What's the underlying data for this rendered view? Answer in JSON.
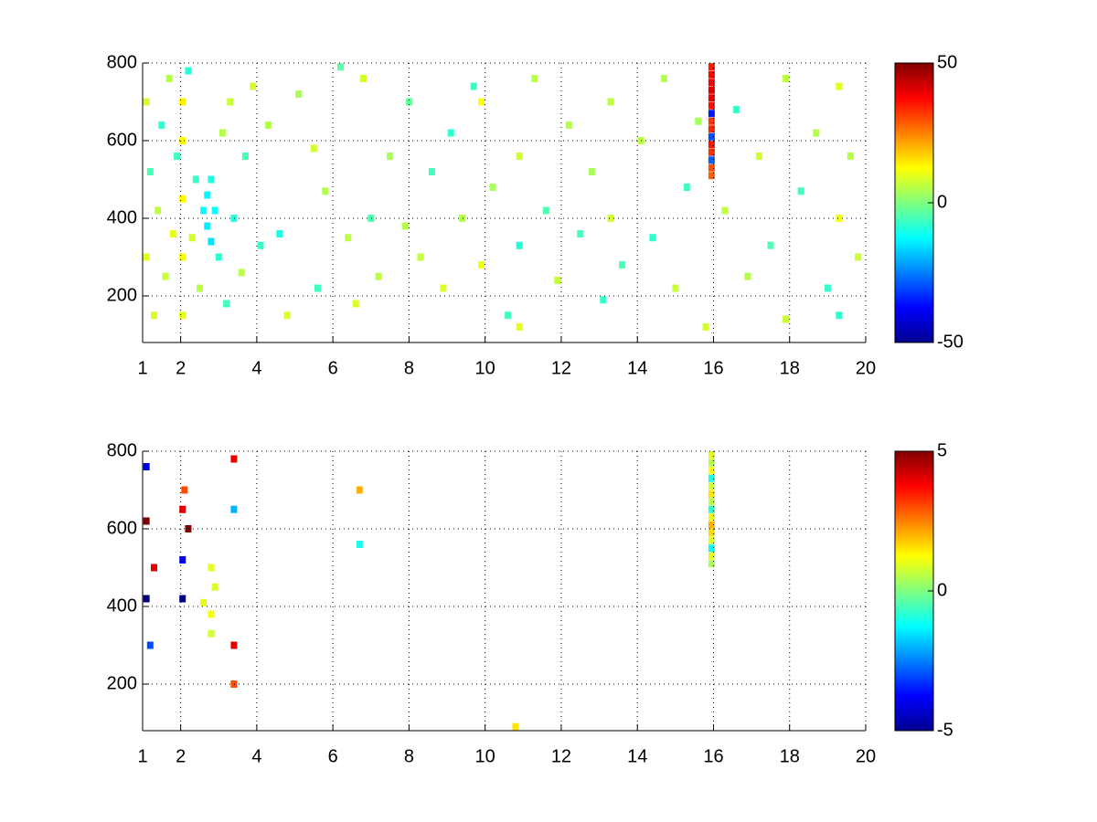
{
  "chart_data": [
    {
      "type": "heatmap",
      "xlim": [
        1,
        20
      ],
      "ylim": [
        80,
        800
      ],
      "xticks": [
        1,
        2,
        4,
        6,
        8,
        10,
        12,
        14,
        16,
        18,
        20
      ],
      "yticks": [
        200,
        400,
        600,
        800
      ],
      "clim": [
        -50,
        50
      ],
      "cticks": [
        -50,
        0,
        50
      ],
      "grid": true,
      "colormap": "jet",
      "cells": [
        [
          1.1,
          700,
          8
        ],
        [
          1.1,
          300,
          10
        ],
        [
          1.2,
          520,
          -5
        ],
        [
          1.3,
          150,
          9
        ],
        [
          1.4,
          420,
          6
        ],
        [
          1.5,
          640,
          -8
        ],
        [
          1.6,
          250,
          7
        ],
        [
          1.7,
          760,
          5
        ],
        [
          1.8,
          360,
          10
        ],
        [
          1.9,
          560,
          -6
        ],
        [
          2.05,
          700,
          14
        ],
        [
          2.05,
          600,
          12
        ],
        [
          2.05,
          450,
          13
        ],
        [
          2.05,
          300,
          11
        ],
        [
          2.05,
          150,
          10
        ],
        [
          2.2,
          780,
          -9
        ],
        [
          2.3,
          350,
          8
        ],
        [
          2.4,
          500,
          -7
        ],
        [
          2.5,
          220,
          6
        ],
        [
          2.6,
          420,
          -12
        ],
        [
          2.7,
          380,
          -14
        ],
        [
          2.7,
          460,
          -13
        ],
        [
          2.8,
          340,
          -15
        ],
        [
          2.8,
          500,
          -10
        ],
        [
          2.9,
          420,
          -12
        ],
        [
          3.0,
          300,
          -8
        ],
        [
          3.1,
          620,
          5
        ],
        [
          3.2,
          180,
          -6
        ],
        [
          3.3,
          700,
          7
        ],
        [
          3.4,
          400,
          -9
        ],
        [
          3.6,
          260,
          6
        ],
        [
          3.7,
          560,
          -5
        ],
        [
          3.9,
          740,
          8
        ],
        [
          4.1,
          330,
          -7
        ],
        [
          4.3,
          640,
          5
        ],
        [
          4.6,
          360,
          -10
        ],
        [
          4.8,
          150,
          9
        ],
        [
          5.1,
          720,
          4
        ],
        [
          5.5,
          580,
          8
        ],
        [
          5.6,
          220,
          -6
        ],
        [
          5.8,
          470,
          5
        ],
        [
          6.2,
          790,
          -4
        ],
        [
          6.4,
          350,
          6
        ],
        [
          6.6,
          180,
          9
        ],
        [
          6.8,
          760,
          8
        ],
        [
          7.0,
          400,
          -5
        ],
        [
          7.2,
          250,
          6
        ],
        [
          7.5,
          560,
          4
        ],
        [
          7.9,
          380,
          5
        ],
        [
          8.0,
          700,
          -3
        ],
        [
          8.3,
          300,
          7
        ],
        [
          8.6,
          520,
          -6
        ],
        [
          8.9,
          220,
          9
        ],
        [
          9.1,
          620,
          -8
        ],
        [
          9.4,
          400,
          5
        ],
        [
          9.7,
          740,
          -7
        ],
        [
          9.9,
          700,
          12
        ],
        [
          9.9,
          280,
          11
        ],
        [
          10.2,
          480,
          4
        ],
        [
          10.6,
          150,
          -6
        ],
        [
          10.9,
          560,
          8
        ],
        [
          10.9,
          330,
          -9
        ],
        [
          10.9,
          120,
          10
        ],
        [
          11.3,
          760,
          6
        ],
        [
          11.6,
          420,
          -5
        ],
        [
          11.9,
          240,
          7
        ],
        [
          12.2,
          640,
          5
        ],
        [
          12.5,
          360,
          -6
        ],
        [
          12.8,
          520,
          4
        ],
        [
          13.1,
          190,
          -7
        ],
        [
          13.3,
          700,
          6
        ],
        [
          13.3,
          400,
          8
        ],
        [
          13.6,
          280,
          -5
        ],
        [
          14.1,
          600,
          6
        ],
        [
          14.4,
          350,
          -8
        ],
        [
          14.7,
          760,
          5
        ],
        [
          15.0,
          220,
          7
        ],
        [
          15.3,
          480,
          -6
        ],
        [
          15.6,
          650,
          4
        ],
        [
          15.8,
          120,
          8
        ],
        [
          15.95,
          790,
          35
        ],
        [
          15.95,
          770,
          37
        ],
        [
          15.95,
          750,
          38
        ],
        [
          15.95,
          730,
          40
        ],
        [
          15.95,
          710,
          39
        ],
        [
          15.95,
          690,
          36
        ],
        [
          15.95,
          670,
          -35
        ],
        [
          15.95,
          650,
          32
        ],
        [
          15.95,
          630,
          34
        ],
        [
          15.95,
          610,
          -30
        ],
        [
          15.95,
          590,
          36
        ],
        [
          15.95,
          570,
          33
        ],
        [
          15.95,
          550,
          -28
        ],
        [
          15.95,
          530,
          30
        ],
        [
          15.95,
          510,
          28
        ],
        [
          16.3,
          420,
          6
        ],
        [
          16.6,
          680,
          -7
        ],
        [
          16.9,
          250,
          5
        ],
        [
          17.2,
          560,
          8
        ],
        [
          17.5,
          330,
          -5
        ],
        [
          17.9,
          760,
          6
        ],
        [
          17.9,
          140,
          7
        ],
        [
          18.3,
          470,
          -6
        ],
        [
          18.7,
          620,
          5
        ],
        [
          19.0,
          220,
          -7
        ],
        [
          19.3,
          740,
          10
        ],
        [
          19.3,
          400,
          11
        ],
        [
          19.3,
          150,
          -8
        ],
        [
          19.6,
          560,
          5
        ],
        [
          19.8,
          300,
          7
        ]
      ]
    },
    {
      "type": "heatmap",
      "xlim": [
        1,
        20
      ],
      "ylim": [
        80,
        800
      ],
      "xticks": [
        1,
        2,
        4,
        6,
        8,
        10,
        12,
        14,
        16,
        18,
        20
      ],
      "yticks": [
        200,
        400,
        600,
        800
      ],
      "clim": [
        -5,
        5
      ],
      "cticks": [
        -5,
        0,
        5
      ],
      "grid": true,
      "colormap": "jet",
      "cells": [
        [
          1.1,
          620,
          5
        ],
        [
          1.1,
          420,
          -5
        ],
        [
          1.1,
          760,
          -4
        ],
        [
          1.3,
          500,
          4
        ],
        [
          1.2,
          300,
          -3
        ],
        [
          2.05,
          650,
          4
        ],
        [
          2.05,
          520,
          -4
        ],
        [
          2.05,
          420,
          -5
        ],
        [
          2.1,
          700,
          3
        ],
        [
          2.2,
          600,
          5
        ],
        [
          2.6,
          410,
          1
        ],
        [
          2.8,
          500,
          1
        ],
        [
          2.8,
          380,
          1.2
        ],
        [
          2.8,
          330,
          0.8
        ],
        [
          2.9,
          450,
          0.9
        ],
        [
          3.4,
          780,
          4
        ],
        [
          3.4,
          650,
          -2
        ],
        [
          3.4,
          300,
          4
        ],
        [
          3.4,
          200,
          3
        ],
        [
          6.7,
          700,
          2
        ],
        [
          6.7,
          560,
          -1
        ],
        [
          10.8,
          90,
          1.5
        ],
        [
          15.95,
          790,
          1
        ],
        [
          15.95,
          770,
          0.5
        ],
        [
          15.95,
          750,
          1.2
        ],
        [
          15.95,
          730,
          -1
        ],
        [
          15.95,
          710,
          0.8
        ],
        [
          15.95,
          690,
          1.5
        ],
        [
          15.95,
          670,
          0.6
        ],
        [
          15.95,
          650,
          -0.8
        ],
        [
          15.95,
          630,
          1.1
        ],
        [
          15.95,
          610,
          2
        ],
        [
          15.95,
          590,
          1.6
        ],
        [
          15.95,
          570,
          0.9
        ],
        [
          15.95,
          550,
          -1.2
        ],
        [
          15.95,
          530,
          1
        ],
        [
          15.95,
          510,
          0.4
        ]
      ]
    }
  ]
}
